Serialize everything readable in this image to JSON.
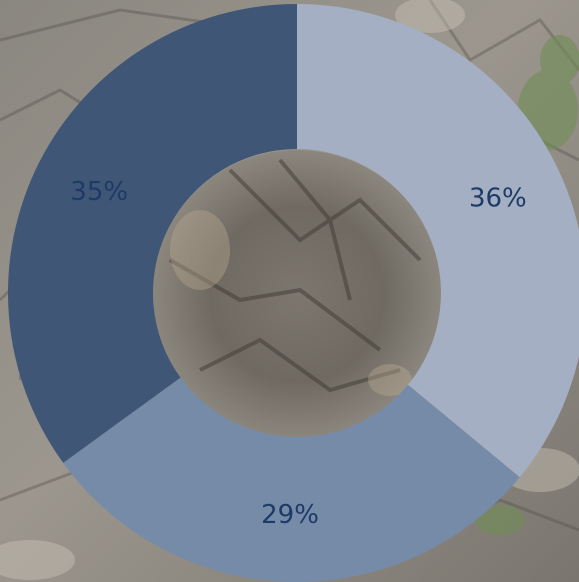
{
  "chart_data": {
    "type": "pie",
    "variant": "donut",
    "slices": [
      {
        "label": "36%",
        "value": 36,
        "color": "#A4AFC3"
      },
      {
        "label": "29%",
        "value": 29,
        "color": "#768BA8"
      },
      {
        "label": "35%",
        "value": 35,
        "color": "#3F5677"
      }
    ],
    "label_color": "#1E3A66",
    "start_angle_deg": 0,
    "direction": "clockwise",
    "legend": "none"
  },
  "background": {
    "description_icon": "rocky-cliff-photo",
    "colors": [
      "#8F8B84",
      "#6E6A63",
      "#B7B1A6",
      "#5B5750",
      "#7E9A63"
    ]
  }
}
